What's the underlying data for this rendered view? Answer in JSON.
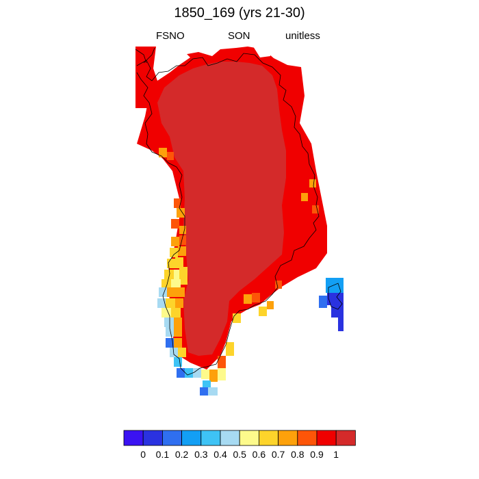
{
  "title": "1850_169 (yrs 21-30)",
  "subtitle_left": "FSNO",
  "subtitle_center": "SON",
  "subtitle_right": "unitless",
  "colorbar": {
    "colors": [
      "#3a12f2",
      "#2a32e0",
      "#2f6ff0",
      "#139ff4",
      "#3ec3f5",
      "#a7daf2",
      "#fdfa8c",
      "#fdd42b",
      "#fda10b",
      "#fd5508",
      "#f00000",
      "#d42a2a"
    ],
    "tick_labels": [
      "0",
      "0.1",
      "0.2",
      "0.3",
      "0.4",
      "0.5",
      "0.6",
      "0.7",
      "0.8",
      "0.9",
      "1"
    ]
  },
  "map_fields": {
    "interior_color": "#d42a2a",
    "margin_color": "#f00000"
  }
}
